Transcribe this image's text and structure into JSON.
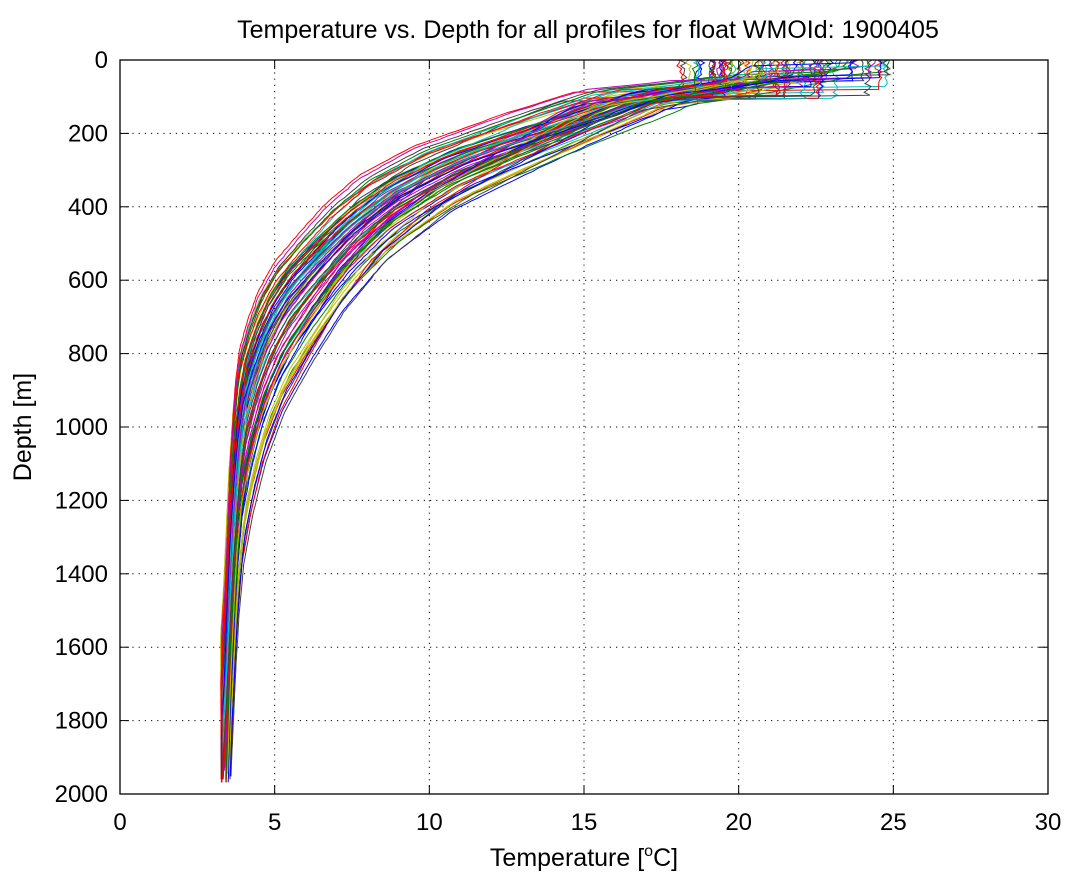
{
  "chart_data": {
    "type": "line",
    "title": "Temperature vs. Depth for all profiles for float WMOId: 1900405",
    "xlabel_prefix": "Temperature [",
    "xlabel_sup": "o",
    "xlabel_suffix": "C]",
    "ylabel": "Depth [m]",
    "xlim": [
      0,
      30
    ],
    "ylim": [
      0,
      2000
    ],
    "y_reversed": true,
    "grid": true,
    "grid_style": "dotted",
    "x_ticks": [
      "0",
      "5",
      "10",
      "15",
      "20",
      "25",
      "30"
    ],
    "y_ticks": [
      "0",
      "200",
      "400",
      "600",
      "800",
      "1000",
      "1200",
      "1400",
      "1600",
      "1800",
      "2000"
    ],
    "x_tick_values": [
      0,
      5,
      10,
      15,
      20,
      25,
      30
    ],
    "y_tick_values": [
      0,
      200,
      400,
      600,
      800,
      1000,
      1200,
      1400,
      1600,
      1800,
      2000
    ],
    "profile_count": 80,
    "representative_profile": {
      "depth": [
        0,
        40,
        80,
        100,
        150,
        200,
        300,
        400,
        500,
        600,
        700,
        800,
        900,
        1000,
        1100,
        1200,
        1400,
        1600,
        1800,
        1960
      ],
      "temperature": [
        22.5,
        21.5,
        18.5,
        16.5,
        15.0,
        13.5,
        10.5,
        8.5,
        7.2,
        6.2,
        5.3,
        4.7,
        4.3,
        4.0,
        3.85,
        3.75,
        3.6,
        3.5,
        3.4,
        3.3
      ]
    },
    "surface_temperature_range": [
      18,
      25
    ],
    "deep_temperature_range": [
      3.2,
      3.4
    ],
    "colors": [
      "#0000ff",
      "#008000",
      "#ff0000",
      "#00bfbf",
      "#bf00bf",
      "#bfbf00",
      "#404040"
    ]
  }
}
